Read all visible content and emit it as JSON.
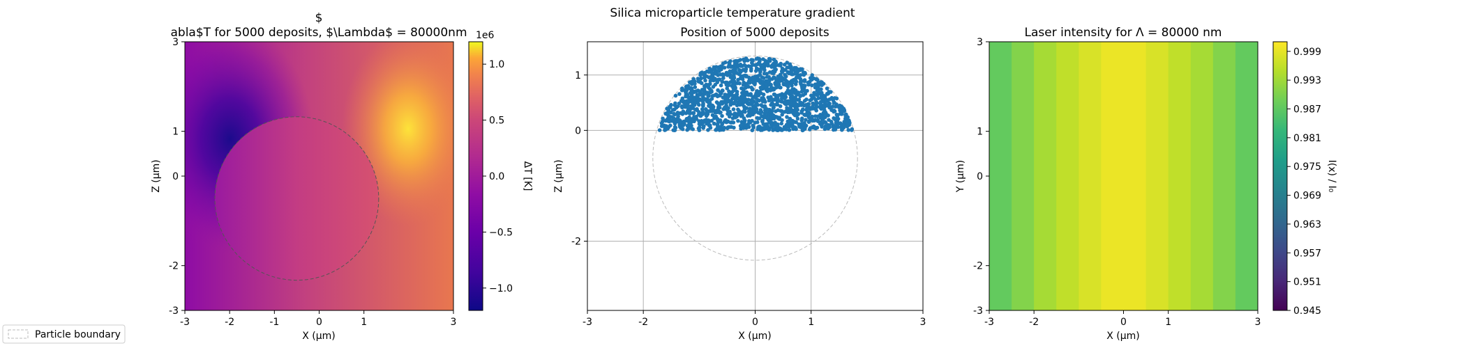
{
  "figure": {
    "suptitle": "Silica microparticle temperature gradient",
    "legend_label": "Particle boundary"
  },
  "chart_data": [
    {
      "type": "heatmap",
      "title_line1": "$",
      "title_line2": "abla$T for 5000 deposits, $\\Lambda$ = 80000nm",
      "xlabel": "X (μm)",
      "ylabel": "Z (μm)",
      "xlim": [
        -3,
        3
      ],
      "ylim": [
        -3,
        3
      ],
      "xticks": [
        "-3",
        "-2",
        "-1",
        "0",
        "1",
        "3"
      ],
      "yticks": [
        "-3",
        "-2",
        "0",
        "1",
        "3"
      ],
      "colormap": "plasma",
      "colorbar": {
        "label": "ΔT [K]",
        "offset_text": "1e6",
        "range": [
          -1.2,
          1.2
        ],
        "ticks": [
          "−1.0",
          "−0.5",
          "0.0",
          "0.5",
          "1.0"
        ]
      },
      "particle_boundary": {
        "center": [
          -0.5,
          -0.5
        ],
        "radius": 1.83,
        "style": "dashed"
      }
    },
    {
      "type": "scatter",
      "title": "Position of 5000 deposits",
      "xlabel": "X (μm)",
      "ylabel": "Z (μm)",
      "xlim": [
        -3,
        3
      ],
      "ylim": [
        -3.25,
        1.6
      ],
      "xticks": [
        "-3",
        "-2",
        "0",
        "1",
        "3"
      ],
      "yticks": [
        "-2",
        "0",
        "1"
      ],
      "grid": true,
      "color": "#1f77b4",
      "n_points": 5000,
      "region": {
        "shape": "upper half-disk",
        "center": [
          0,
          -0.5
        ],
        "radius": 1.83,
        "z_min": 0
      },
      "particle_boundary": {
        "center": [
          0,
          -0.5
        ],
        "radius": 1.83,
        "style": "dashed"
      }
    },
    {
      "type": "heatmap",
      "title": "Laser intensity for Λ = 80000 nm",
      "xlabel": "X (μm)",
      "ylabel": "Y (μm)",
      "xlim": [
        -3,
        3
      ],
      "ylim": [
        -3,
        3
      ],
      "xticks": [
        "-3",
        "-2",
        "0",
        "1",
        "3"
      ],
      "yticks": [
        "-3",
        "-2",
        "0",
        "1",
        "3"
      ],
      "colormap": "viridis",
      "columns": [
        {
          "x0": -3.0,
          "x1": -2.5,
          "value": 0.9875
        },
        {
          "x0": -2.5,
          "x1": -2.0,
          "value": 0.9905
        },
        {
          "x0": -2.0,
          "x1": -1.5,
          "value": 0.9935
        },
        {
          "x0": -1.5,
          "x1": -1.0,
          "value": 0.9958
        },
        {
          "x0": -1.0,
          "x1": -0.5,
          "value": 0.9978
        },
        {
          "x0": -0.5,
          "x1": 0.5,
          "value": 0.9995
        },
        {
          "x0": 0.5,
          "x1": 1.0,
          "value": 0.9978
        },
        {
          "x0": 1.0,
          "x1": 1.5,
          "value": 0.9958
        },
        {
          "x0": 1.5,
          "x1": 2.0,
          "value": 0.9935
        },
        {
          "x0": 2.0,
          "x1": 2.5,
          "value": 0.9905
        },
        {
          "x0": 2.5,
          "x1": 3.0,
          "value": 0.9875
        }
      ],
      "colorbar": {
        "label": "I(x) / I₀",
        "range": [
          0.945,
          1.001
        ],
        "ticks": [
          "0.945",
          "0.951",
          "0.957",
          "0.963",
          "0.969",
          "0.975",
          "0.981",
          "0.987",
          "0.993",
          "0.999"
        ]
      }
    }
  ]
}
